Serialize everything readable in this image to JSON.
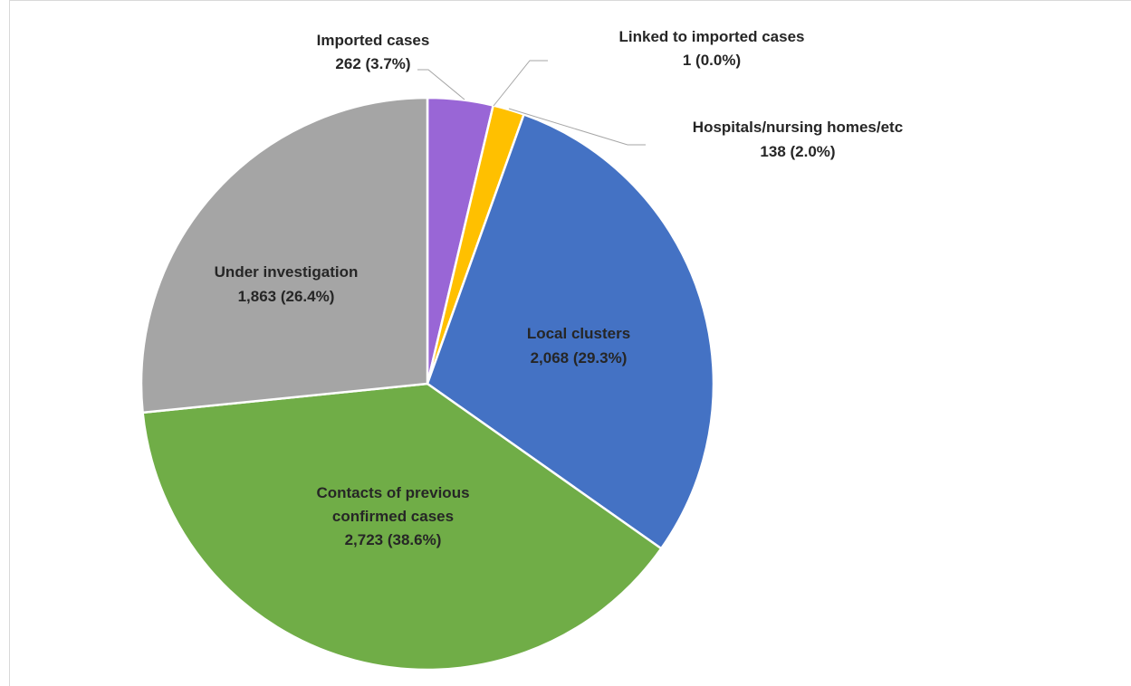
{
  "chart_data": {
    "type": "pie",
    "title": "",
    "slices": [
      {
        "name": "Imported cases",
        "label_lines": [
          "Imported cases"
        ],
        "value_text": "262  (3.7%)",
        "value": 262,
        "percent": 3.7,
        "color": "#9966d6"
      },
      {
        "name": "Linked to imported cases",
        "label_lines": [
          "Linked to imported cases"
        ],
        "value_text": "1  (0.0%)",
        "value": 1,
        "percent": 0.0,
        "color": "#ffc000"
      },
      {
        "name": "Hospitals/nursing homes/etc",
        "label_lines": [
          "Hospitals/nursing homes/etc"
        ],
        "value_text": "138  (2.0%)",
        "value": 138,
        "percent": 2.0,
        "color": "#ffc000"
      },
      {
        "name": "Local clusters",
        "label_lines": [
          "Local clusters"
        ],
        "value_text": "2,068  (29.3%)",
        "value": 2068,
        "percent": 29.3,
        "color": "#4472c4"
      },
      {
        "name": "Contacts of previous confirmed cases",
        "label_lines": [
          "Contacts of previous",
          "confirmed cases"
        ],
        "value_text": "2,723  (38.6%)",
        "value": 2723,
        "percent": 38.6,
        "color": "#70ad47"
      },
      {
        "name": "Under investigation",
        "label_lines": [
          "Under investigation"
        ],
        "value_text": "1,863  (26.4%)",
        "value": 1863,
        "percent": 26.4,
        "color": "#a5a5a5"
      }
    ],
    "legend": "none",
    "data_labels": "on-chart"
  }
}
